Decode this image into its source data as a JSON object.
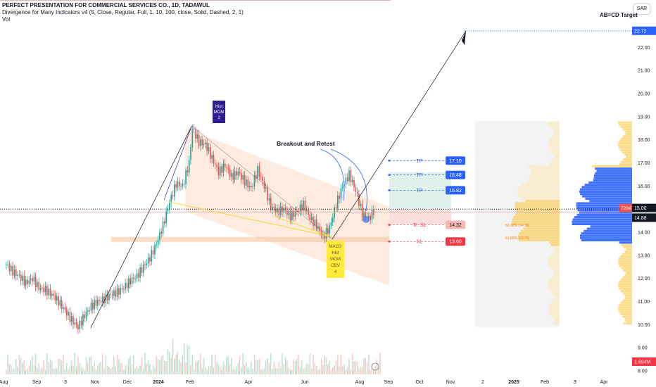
{
  "header": {
    "title": "PERFECT PRESENTATION FOR COMMERCIAL SERVICES CO., 1D, TADAWUL",
    "indicator": "Divergence for Many Indicators v4 (5, Close, Regular, Full, 1, 10, 100, close, Solid, Dashed, 2, 1)",
    "volume_label": "Vol",
    "currency": "SAR"
  },
  "chart_data": {
    "type": "candlestick",
    "x_ticks": [
      "Aug",
      "Sep",
      "3",
      "Nov",
      "Dec",
      "2024",
      "Feb",
      "Apr",
      "Jun",
      "Aug",
      "Sep",
      "Oct",
      "Nov",
      "2",
      "2025",
      "Feb",
      "3",
      "Apr"
    ],
    "y_ticks": [
      8.0,
      9.0,
      10.0,
      11.0,
      12.0,
      13.0,
      14.0,
      15.0,
      16.0,
      17.0,
      18.0,
      19.0,
      20.0,
      21.0,
      22.0
    ],
    "ylim": [
      7.85,
      23.2
    ],
    "close_path": [
      [
        0,
        12.6
      ],
      [
        4,
        12.3
      ],
      [
        8,
        12.1
      ],
      [
        12,
        11.8
      ],
      [
        16,
        12.0
      ],
      [
        20,
        11.6
      ],
      [
        24,
        11.5
      ],
      [
        28,
        11.3
      ],
      [
        32,
        11.0
      ],
      [
        36,
        10.6
      ],
      [
        40,
        10.2
      ],
      [
        44,
        9.9
      ],
      [
        48,
        10.4
      ],
      [
        52,
        10.8
      ],
      [
        56,
        11.0
      ],
      [
        60,
        11.1
      ],
      [
        64,
        11.3
      ],
      [
        68,
        11.4
      ],
      [
        72,
        11.6
      ],
      [
        76,
        11.9
      ],
      [
        80,
        12.1
      ],
      [
        84,
        12.5
      ],
      [
        88,
        12.9
      ],
      [
        92,
        13.5
      ],
      [
        96,
        14.3
      ],
      [
        100,
        15.3
      ],
      [
        104,
        16.1
      ],
      [
        108,
        16.0
      ],
      [
        112,
        17.0
      ],
      [
        114,
        18.5
      ],
      [
        118,
        17.9
      ],
      [
        122,
        17.8
      ],
      [
        126,
        17.2
      ],
      [
        130,
        16.6
      ],
      [
        134,
        16.9
      ],
      [
        138,
        16.4
      ],
      [
        142,
        16.6
      ],
      [
        146,
        16.2
      ],
      [
        150,
        15.9
      ],
      [
        154,
        16.7
      ],
      [
        158,
        16.0
      ],
      [
        162,
        15.1
      ],
      [
        166,
        14.9
      ],
      [
        170,
        15.0
      ],
      [
        174,
        14.7
      ],
      [
        178,
        14.9
      ],
      [
        182,
        15.2
      ],
      [
        186,
        14.6
      ],
      [
        190,
        14.3
      ],
      [
        194,
        13.8
      ],
      [
        198,
        14.2
      ],
      [
        202,
        15.2
      ],
      [
        206,
        16.0
      ],
      [
        210,
        16.5
      ],
      [
        214,
        15.8
      ],
      [
        218,
        14.8
      ],
      [
        222,
        14.6
      ],
      [
        226,
        15.0
      ]
    ],
    "levels": {
      "tp3": {
        "label": "TP",
        "value": 17.1
      },
      "tp2": {
        "label": "TP",
        "value": 16.48
      },
      "tp1": {
        "label": "TP",
        "value": 15.82
      },
      "tr_sl": {
        "label": "Tr. SL",
        "value": 14.32
      },
      "sl": {
        "label": "SL",
        "value": 13.6
      },
      "current": 14.88,
      "dotted": 15.0,
      "abcd_target": 22.72
    },
    "price_tags": {
      "tp3": "17.10",
      "tp2": "16.48",
      "tp1": "15.82",
      "tr_sl": "14.32",
      "sl": "13.60",
      "top": "22.72",
      "volume": "7204",
      "dotted": "15.00",
      "current": "14.88",
      "vol_total": "1.694M"
    },
    "fib_labels": [
      "50.00% (14.30)",
      "61.80% (13.76)"
    ],
    "annotations": {
      "abcd": "AB=CD Target",
      "breakout": "Breakout and Retest",
      "div_top": [
        "Hist",
        "MOM",
        "2"
      ],
      "div_bottom": [
        "MACD",
        "Hist",
        "MOM",
        "OBV",
        "4"
      ]
    },
    "colors": {
      "up": "#26a69a",
      "down": "#ef5350",
      "tp": "#2962ff",
      "sl": "#f23645",
      "channel": "#f7c7a0",
      "profile_up": "#fbc02d",
      "profile_down": "#2962ff"
    }
  }
}
